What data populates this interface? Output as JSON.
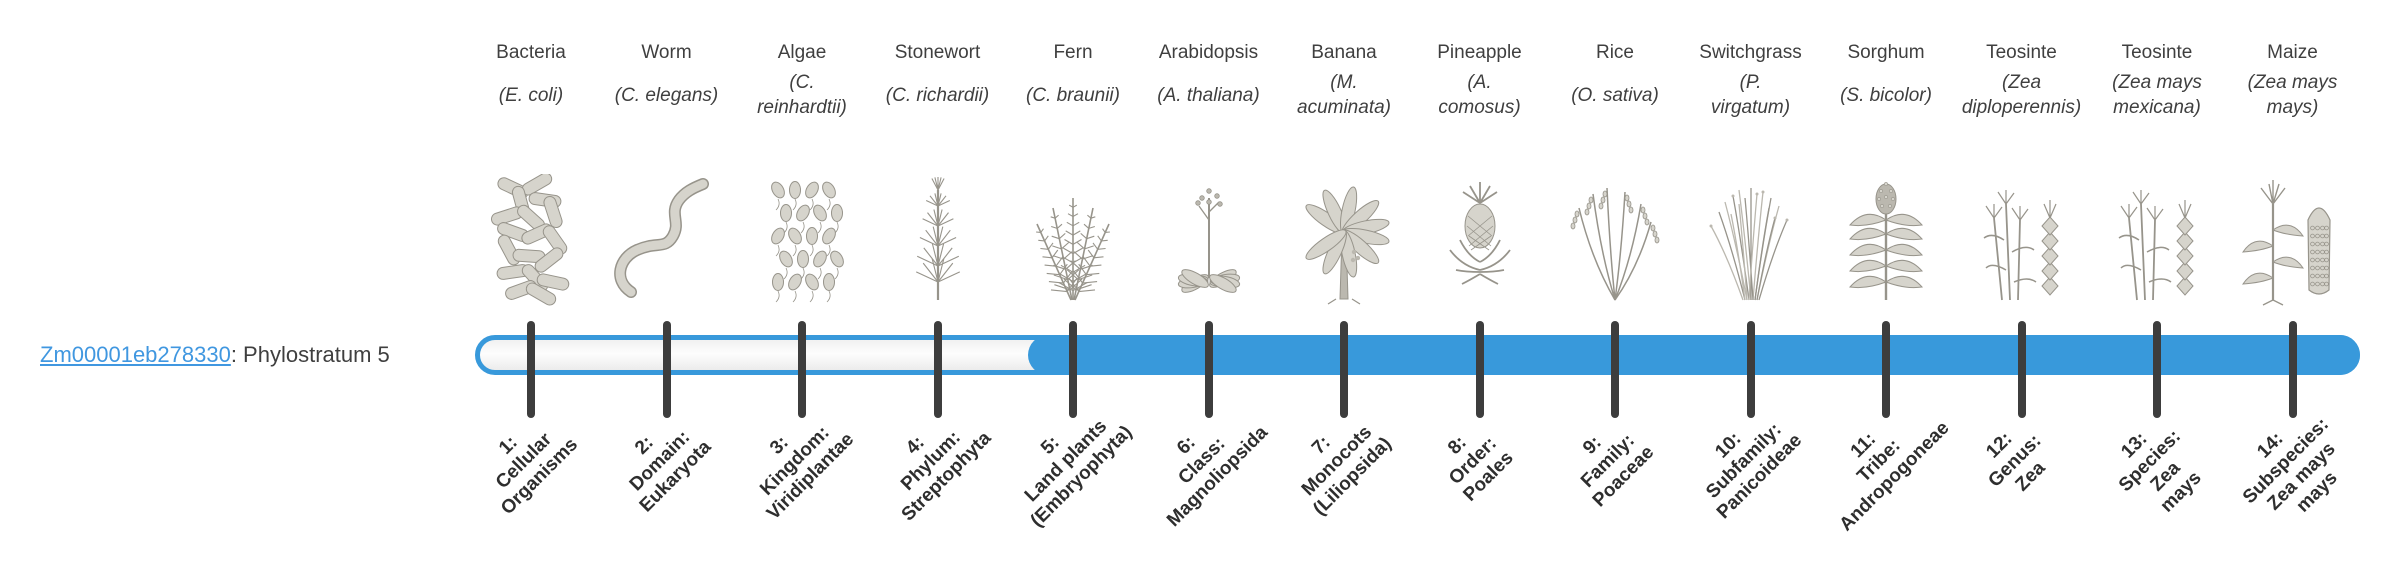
{
  "colors": {
    "accent": "#3899db",
    "tick": "#3d3d3d",
    "text": "#3f3f3f",
    "link": "#4097e0",
    "label": "#2e2e2e"
  },
  "gene": {
    "id": "Zm00001eb278330",
    "suffix": ": Phylostratum 5"
  },
  "timeline": {
    "fill_from_stratum": 5,
    "strata": [
      {
        "index": 1,
        "common_name": "Bacteria",
        "sci_lines": [
          "(E. coli)"
        ],
        "icon": "bacteria-icon",
        "label_lines": [
          "1:",
          "Cellular",
          "Organisms"
        ]
      },
      {
        "index": 2,
        "common_name": "Worm",
        "sci_lines": [
          "(C. elegans)"
        ],
        "icon": "worm-icon",
        "label_lines": [
          "2:",
          "Domain:",
          "Eukaryota"
        ]
      },
      {
        "index": 3,
        "common_name": "Algae",
        "sci_lines": [
          "(C.",
          "reinhardtii)"
        ],
        "icon": "algae-icon",
        "label_lines": [
          "3:",
          "Kingdom:",
          "Viridiplantae"
        ]
      },
      {
        "index": 4,
        "common_name": "Stonewort",
        "sci_lines": [
          "(C. richardii)"
        ],
        "icon": "stonewort-icon",
        "label_lines": [
          "4:",
          "Phylum:",
          "Streptophyta"
        ]
      },
      {
        "index": 5,
        "common_name": "Fern",
        "sci_lines": [
          "(C. braunii)"
        ],
        "icon": "fern-icon",
        "label_lines": [
          "5:",
          "Land plants",
          "(Embryophyta)"
        ]
      },
      {
        "index": 6,
        "common_name": "Arabidopsis",
        "sci_lines": [
          "(A. thaliana)"
        ],
        "icon": "arabidopsis-icon",
        "label_lines": [
          "6:",
          "Class:",
          "Magnoliopsida"
        ]
      },
      {
        "index": 7,
        "common_name": "Banana",
        "sci_lines": [
          "(M.",
          "acuminata)"
        ],
        "icon": "banana-icon",
        "label_lines": [
          "7:",
          "Monocots",
          "(Liliopsida)"
        ]
      },
      {
        "index": 8,
        "common_name": "Pineapple",
        "sci_lines": [
          "(A.",
          "comosus)"
        ],
        "icon": "pineapple-icon",
        "label_lines": [
          "8:",
          "Order:",
          "Poales"
        ]
      },
      {
        "index": 9,
        "common_name": "Rice",
        "sci_lines": [
          "(O. sativa)"
        ],
        "icon": "rice-icon",
        "label_lines": [
          "9:",
          "Family:",
          "Poaceae"
        ]
      },
      {
        "index": 10,
        "common_name": "Switchgrass",
        "sci_lines": [
          "(P.",
          "virgatum)"
        ],
        "icon": "switchgrass-icon",
        "label_lines": [
          "10:",
          "Subfamily:",
          "Panicoideae"
        ]
      },
      {
        "index": 11,
        "common_name": "Sorghum",
        "sci_lines": [
          "(S. bicolor)"
        ],
        "icon": "sorghum-icon",
        "label_lines": [
          "11:",
          "Tribe:",
          "Andropogoneae"
        ]
      },
      {
        "index": 12,
        "common_name": "Teosinte",
        "sci_lines": [
          "(Zea",
          "diploperennis)"
        ],
        "icon": "teosinte-icon",
        "label_lines": [
          "12:",
          "Genus:",
          "Zea"
        ]
      },
      {
        "index": 13,
        "common_name": "Teosinte",
        "sci_lines": [
          "(Zea mays",
          "mexicana)"
        ],
        "icon": "teosinte-icon",
        "label_lines": [
          "13:",
          "Species:",
          "Zea",
          "mays"
        ]
      },
      {
        "index": 14,
        "common_name": "Maize",
        "sci_lines": [
          "(Zea mays",
          "mays)"
        ],
        "icon": "maize-icon",
        "label_lines": [
          "14:",
          "Subspecies:",
          "Zea mays",
          "mays"
        ]
      }
    ]
  }
}
